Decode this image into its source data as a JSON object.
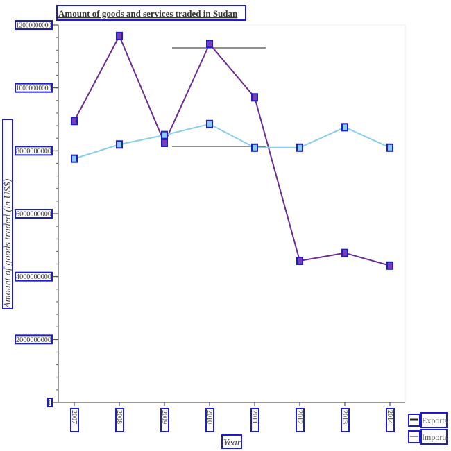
{
  "chart_data": {
    "type": "line",
    "title": "Amount of goods and services traded in Sudan",
    "xlabel": "Year",
    "ylabel": "Amount of goods traded (in US$)",
    "categories": [
      "2007",
      "2008",
      "2009",
      "2010",
      "2011",
      "2012",
      "2013",
      "2014"
    ],
    "ylim": [
      0,
      12000000000
    ],
    "yticks": [
      0,
      2000000000,
      4000000000,
      6000000000,
      8000000000,
      10000000000,
      12000000000
    ],
    "ytick_labels": [
      "0",
      "2000000000",
      "4000000000",
      "6000000000",
      "8000000000",
      "10000000000",
      "12000000000"
    ],
    "series": [
      {
        "name": "Exports",
        "color": "#6a2c91",
        "marker_color": "#7b3fb3",
        "values": [
          8950000000,
          11650000000,
          8250000000,
          11400000000,
          9700000000,
          4500000000,
          4750000000,
          4350000000
        ]
      },
      {
        "name": "Imports",
        "color": "#87ceeb",
        "marker_color": "#87ceeb",
        "values": [
          7750000000,
          8200000000,
          8500000000,
          8850000000,
          8100000000,
          8100000000,
          8750000000,
          8100000000
        ]
      }
    ],
    "legend_position": "bottom-right",
    "grid": false
  }
}
